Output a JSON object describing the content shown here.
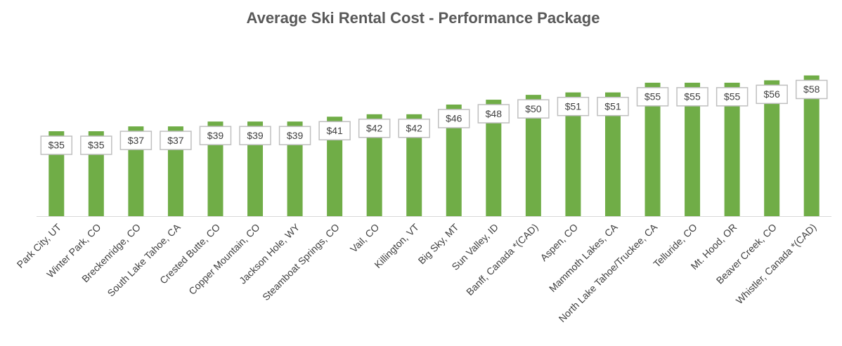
{
  "chart_data": {
    "type": "bar",
    "title": "Average Ski Rental Cost - Performance Package",
    "categories": [
      "Park City, UT",
      "Winter Park, CO",
      "Breckenridge, CO",
      "South Lake Tahoe, CA",
      "Crested Butte, CO",
      "Copper Mountain, CO",
      "Jackson Hole, WY",
      "Steamboat Springs, CO",
      "Vail, CO",
      "Killington, VT",
      "Big Sky, MT",
      "Sun Valley, ID",
      "Banff, Canada *(CAD)",
      "Aspen, CO",
      "Mammoth Lakes, CA",
      "North Lake Tahoe/Truckee, CA",
      "Telluride, CO",
      "Mt. Hood, OR",
      "Beaver Creek, CO",
      "Whistler, Canada *(CAD)"
    ],
    "values": [
      35,
      35,
      37,
      37,
      39,
      39,
      39,
      41,
      42,
      42,
      46,
      48,
      50,
      51,
      51,
      55,
      55,
      55,
      56,
      58
    ],
    "value_labels": [
      "$35",
      "$35",
      "$37",
      "$37",
      "$39",
      "$39",
      "$39",
      "$41",
      "$42",
      "$42",
      "$46",
      "$48",
      "$50",
      "$51",
      "$51",
      "$55",
      "$55",
      "$55",
      "$56",
      "$58"
    ],
    "color": "#70ad47",
    "ylim": [
      0,
      70
    ]
  }
}
